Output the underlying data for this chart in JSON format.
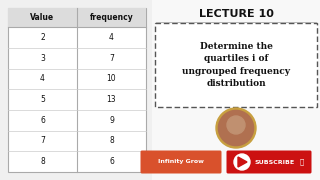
{
  "bg_color": "#f0f0f0",
  "table_values": [
    2,
    3,
    4,
    5,
    6,
    7,
    8
  ],
  "table_frequencies": [
    4,
    7,
    10,
    13,
    9,
    8,
    6
  ],
  "col_headers": [
    "Value",
    "frequency"
  ],
  "lecture_title": "LECTURE 10",
  "main_text_lines": [
    "Determine the",
    "quartiles i of",
    "ungrouped frequency",
    "distribution"
  ],
  "brand_text": "Infinity Grow",
  "subscribe_text": "SUBSCRIBE",
  "table_bg": "#ffffff",
  "header_bg": "#dcdcdc",
  "right_bg": "#f8f8f8",
  "dashed_border_color": "#555555",
  "brand_btn_color": "#d9512c",
  "subscribe_btn_color": "#cc1111",
  "title_color": "#111111",
  "main_text_color": "#111111",
  "profile_ring_color": "#c8a040",
  "profile_face_color": "#b07050"
}
